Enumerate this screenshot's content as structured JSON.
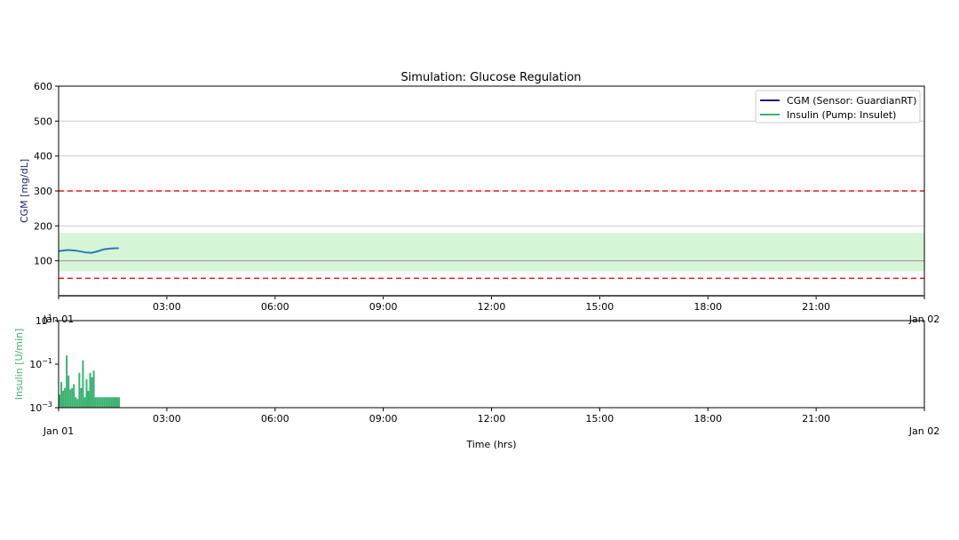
{
  "chart_data": [
    {
      "type": "line",
      "title": "Simulation: Glucose Regulation",
      "ylabel": "CGM [mg/dL]",
      "ylim": [
        0,
        600
      ],
      "yticks": [
        100,
        200,
        300,
        400,
        500,
        600
      ],
      "ytick_labels": [
        "100",
        "200",
        "300",
        "400",
        "500",
        "600"
      ],
      "xlim": [
        "Jan 01 00:00",
        "Jan 02 00:00"
      ],
      "xtick_labels": [
        "Jan 01",
        "03:00",
        "06:00",
        "09:00",
        "12:00",
        "15:00",
        "18:00",
        "21:00",
        "Jan 02"
      ],
      "grid": "horizontal",
      "legend": {
        "placement": "top-right",
        "entries": [
          {
            "label": "CGM (Sensor: GuardianRT)",
            "color": "#1f1f7a"
          },
          {
            "label": "Insulin (Pump: Insulet)",
            "color": "#3cb371"
          }
        ]
      },
      "target_band": {
        "low": 70,
        "high": 180,
        "color": "#d6f5d6"
      },
      "reference_line": {
        "y": 100,
        "color": "#999999"
      },
      "threshold_lines": [
        {
          "y": 300,
          "color": "#e31a1c",
          "style": "dashed"
        },
        {
          "y": 50,
          "color": "#e31a1c",
          "style": "dashed"
        }
      ],
      "series": [
        {
          "color": "#2a7ab8",
          "x": [
            "00:00",
            "00:15",
            "00:30",
            "00:45",
            "00:55",
            "01:05",
            "01:15",
            "01:25",
            "01:35",
            "01:40"
          ],
          "y": [
            128,
            131,
            129,
            124,
            123,
            127,
            133,
            135,
            136,
            136
          ]
        }
      ]
    },
    {
      "type": "bar",
      "ylabel": "Insulin [U/min]",
      "xlabel": "Time (hrs)",
      "yscale": "log",
      "ylim": [
        0.001,
        10
      ],
      "ytick_labels": [
        "10^-3",
        "10^-1",
        "10^1"
      ],
      "xlim": [
        "Jan 01 00:00",
        "Jan 02 00:00"
      ],
      "xtick_labels": [
        "Jan 01",
        "03:00",
        "06:00",
        "09:00",
        "12:00",
        "15:00",
        "18:00",
        "21:00",
        "Jan 02"
      ],
      "bar_color": "#3cb371",
      "x_minutes": [
        0,
        3,
        6,
        9,
        12,
        15,
        18,
        21,
        24,
        27,
        30,
        33,
        36,
        39,
        42,
        45,
        48,
        51,
        54,
        57,
        60,
        63,
        66,
        69,
        72,
        75,
        78,
        81,
        84,
        87,
        90,
        93,
        96,
        99
      ],
      "values": [
        0.004,
        0.015,
        0.006,
        0.008,
        0.25,
        0.03,
        0.007,
        0.008,
        0.012,
        0.003,
        0.0025,
        0.04,
        0.008,
        0.15,
        0.003,
        0.02,
        0.006,
        0.04,
        0.025,
        0.05,
        0.003,
        0.003,
        0.003,
        0.003,
        0.003,
        0.003,
        0.003,
        0.003,
        0.003,
        0.003,
        0.003,
        0.003,
        0.003,
        0.003
      ]
    }
  ]
}
